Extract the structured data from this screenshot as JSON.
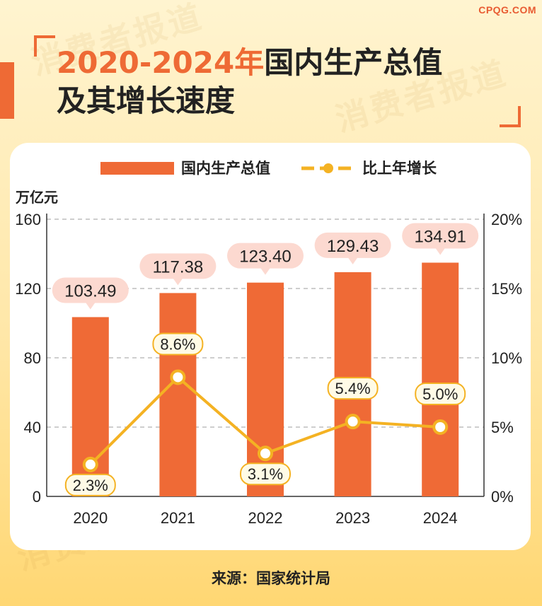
{
  "brand": "CPQG.COM",
  "watermark": "消费者报道",
  "title": {
    "highlight": "2020-2024年",
    "rest": "国内生产总值",
    "line2": "及其增长速度"
  },
  "source": "来源：国家统计局",
  "colors": {
    "accent": "#ee6a35",
    "bar": "#ef6a36",
    "line": "#f4b223",
    "label_bg": "#fcd9d0",
    "pct_label_bg": "#fffbe6"
  },
  "chart_data": {
    "type": "bar",
    "categories": [
      "2020",
      "2021",
      "2022",
      "2023",
      "2024"
    ],
    "series": [
      {
        "name": "国内生产总值",
        "type": "bar",
        "axis": "left",
        "values": [
          103.49,
          117.38,
          123.4,
          129.43,
          134.91
        ]
      },
      {
        "name": "比上年增长",
        "type": "line",
        "axis": "right",
        "values": [
          2.3,
          8.6,
          3.1,
          5.4,
          5.0
        ]
      }
    ],
    "bar_labels": [
      "103.49",
      "117.38",
      "123.40",
      "129.43",
      "134.91"
    ],
    "line_labels": [
      "2.3%",
      "8.6%",
      "3.1%",
      "5.4%",
      "5.0%"
    ],
    "ylabel": "万亿元",
    "ylim": [
      0,
      160
    ],
    "yticks": [
      "0",
      "40",
      "80",
      "120",
      "160"
    ],
    "y2lim": [
      0,
      20
    ],
    "y2ticks": [
      "0%",
      "5%",
      "10%",
      "15%",
      "20%"
    ],
    "grid": true,
    "legend": "top-center"
  }
}
